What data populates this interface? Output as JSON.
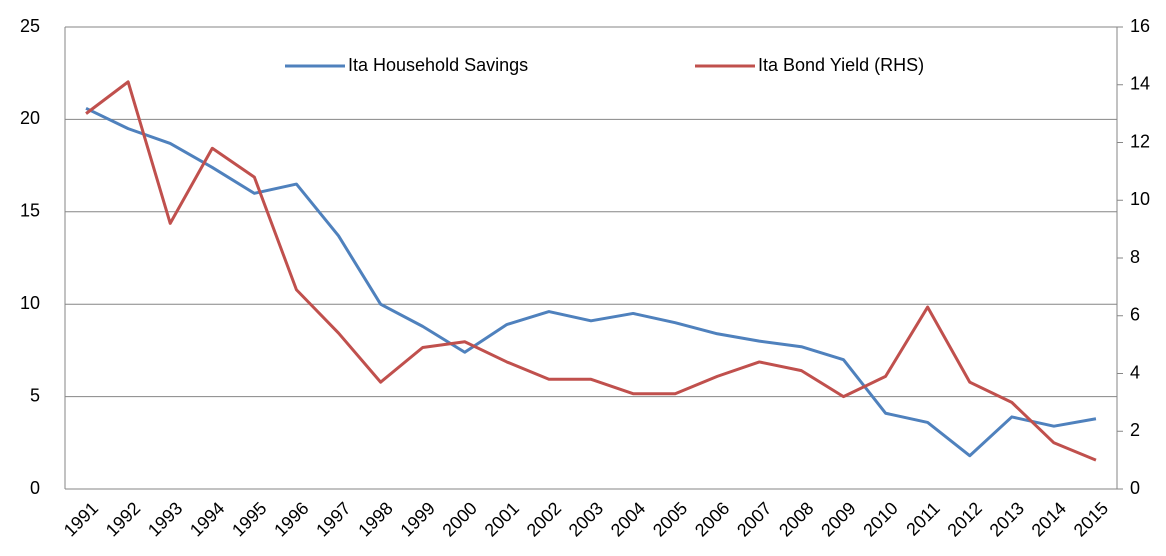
{
  "chart_data": {
    "type": "line",
    "categories": [
      "1991",
      "1992",
      "1993",
      "1994",
      "1995",
      "1996",
      "1997",
      "1998",
      "1999",
      "2000",
      "2001",
      "2002",
      "2003",
      "2004",
      "2005",
      "2006",
      "2007",
      "2008",
      "2009",
      "2010",
      "2011",
      "2012",
      "2013",
      "2014",
      "2015"
    ],
    "series": [
      {
        "name": "Ita Household Savings",
        "color": "#4f81bd",
        "values": [
          20.6,
          19.5,
          18.7,
          17.4,
          16.0,
          16.5,
          13.7,
          10.0,
          8.8,
          7.4,
          8.9,
          9.6,
          9.1,
          9.5,
          9.0,
          8.4,
          8.0,
          7.7,
          7.0,
          4.1,
          3.6,
          1.8,
          3.9,
          3.4,
          3.8
        ]
      },
      {
        "name": "Ita Bond Yield (RHS)",
        "color": "#c0504d",
        "axis": "y2",
        "values": [
          13.0,
          14.1,
          9.2,
          11.8,
          10.8,
          6.9,
          5.4,
          3.7,
          4.9,
          5.1,
          4.4,
          3.8,
          3.8,
          3.3,
          3.3,
          3.9,
          4.4,
          4.1,
          3.2,
          3.9,
          6.3,
          3.7,
          3.0,
          1.6,
          1.0
        ]
      }
    ],
    "ylim": [
      0,
      25
    ],
    "yticks": [
      0,
      5,
      10,
      15,
      20,
      25
    ],
    "y2lim": [
      0,
      16
    ],
    "y2ticks": [
      0,
      2,
      4,
      6,
      8,
      10,
      12,
      14,
      16
    ],
    "grid": true,
    "legend": "top"
  }
}
